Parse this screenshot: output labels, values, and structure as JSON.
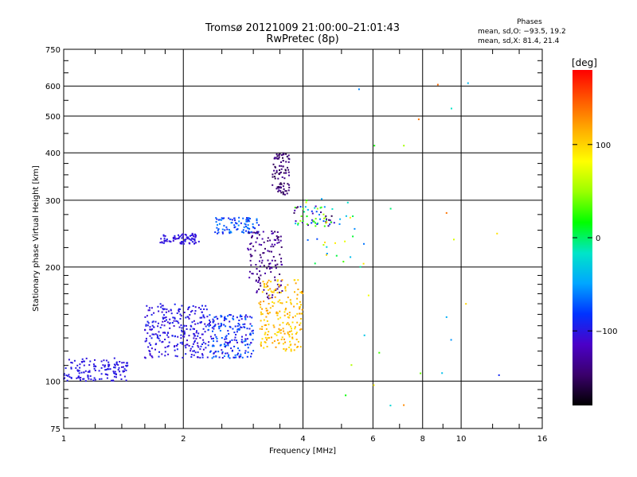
{
  "header": {
    "title": "Tromsø 20121009 21:00:00–21:01:43",
    "subtitle": "RwPretec (8p)"
  },
  "phases": {
    "heading": "Phases",
    "o_mode": "mean, sd,O: −93.5, 19.2",
    "x_mode": "mean, sd,X: 81.4, 21.4"
  },
  "colorbar": {
    "label": "[deg]",
    "ticks": [
      "100",
      "0",
      "−100"
    ],
    "tick_values": [
      100,
      0,
      -100
    ],
    "range": [
      -180,
      180
    ],
    "colors": [
      "#000000",
      "#3a006b",
      "#4b00c8",
      "#0033ff",
      "#00a6ff",
      "#00e5c8",
      "#00ff00",
      "#9aff00",
      "#ffff00",
      "#ffb000",
      "#ff5a00",
      "#ff0000"
    ]
  },
  "chart_data": {
    "type": "scatter",
    "title": "Tromsø 20121009 21:00:00–21:01:43",
    "subtitle": "RwPretec (8p)",
    "xlabel": "Frequency [MHz]",
    "ylabel": "Stationary phase Virtual Height [km]",
    "xscale": "log",
    "yscale": "log",
    "xlim": [
      1,
      16
    ],
    "ylim": [
      75,
      750
    ],
    "xticks": [
      "1",
      "2",
      "4",
      "6",
      "8",
      "10",
      "16"
    ],
    "xtick_values": [
      1,
      2,
      4,
      6,
      8,
      10,
      16
    ],
    "yticks": [
      "750",
      "600",
      "500",
      "400",
      "300",
      "200",
      "100",
      "75"
    ],
    "ytick_values": [
      750,
      600,
      500,
      400,
      300,
      200,
      100,
      75
    ],
    "grid": true,
    "color_variable": "phase [deg]",
    "clusters": [
      {
        "x": [
          1.0,
          1.45
        ],
        "y": [
          100,
          115
        ],
        "phase": [
          -105,
          -95
        ],
        "n": 140
      },
      {
        "x": [
          1.6,
          2.3
        ],
        "y": [
          115,
          160
        ],
        "phase": [
          -110,
          -90
        ],
        "n": 260
      },
      {
        "x": [
          2.3,
          3.0
        ],
        "y": [
          115,
          150
        ],
        "phase": [
          -110,
          -60
        ],
        "n": 200
      },
      {
        "x": [
          1.75,
          2.2
        ],
        "y": [
          230,
          245
        ],
        "phase": [
          -110,
          -95
        ],
        "n": 80
      },
      {
        "x": [
          2.4,
          3.1
        ],
        "y": [
          245,
          270
        ],
        "phase": [
          -100,
          -55
        ],
        "n": 90
      },
      {
        "x": [
          2.9,
          3.55
        ],
        "y": [
          165,
          250
        ],
        "phase": [
          -150,
          -120
        ],
        "n": 130
      },
      {
        "x": [
          3.35,
          3.7
        ],
        "y": [
          310,
          400
        ],
        "phase": [
          -160,
          -130
        ],
        "n": 90
      },
      {
        "x": [
          3.8,
          4.8
        ],
        "y": [
          255,
          290
        ],
        "phase": [
          -160,
          60
        ],
        "n": 60
      },
      {
        "x": [
          3.1,
          4.0
        ],
        "y": [
          120,
          185
        ],
        "phase": [
          90,
          125
        ],
        "n": 200
      },
      {
        "x": [
          4.0,
          5.8
        ],
        "y": [
          190,
          320
        ],
        "phase": [
          -80,
          130
        ],
        "n": 30
      },
      {
        "x": [
          5.0,
          12.5
        ],
        "y": [
          85,
          620
        ],
        "phase": [
          -90,
          160
        ],
        "n": 25
      }
    ]
  }
}
